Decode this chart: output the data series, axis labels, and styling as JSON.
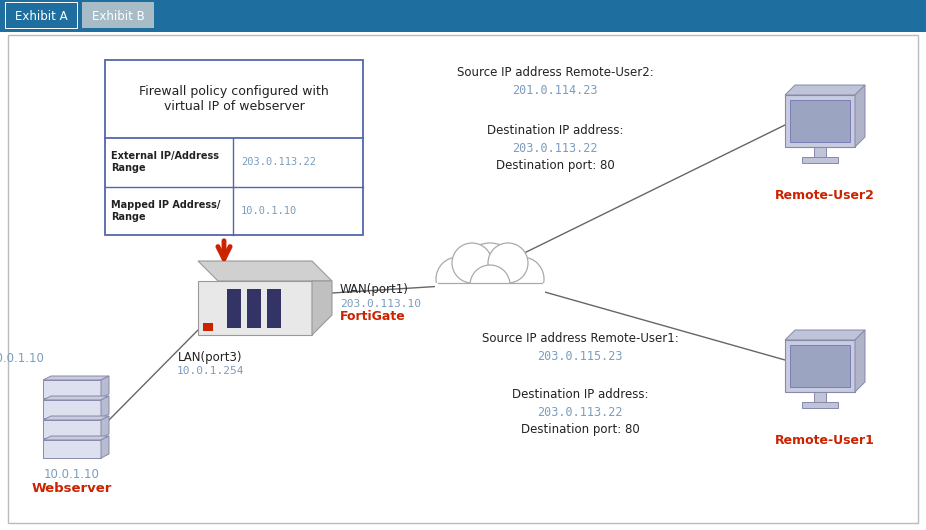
{
  "bg_color": "#ffffff",
  "header_bg": "#1e6fa0",
  "tab_a_bg": "#1e6fa0",
  "tab_a_text_color": "white",
  "tab_b_bg": "#a8bcc8",
  "tab_b_text_color": "white",
  "tab_a_text": "Exhibit A",
  "tab_b_text": "Exhibit B",
  "main_border": "#bbbbbb",
  "table_title": "Firewall policy configured with\nvirtual IP of webserver",
  "table_row1_label": "External IP/Address\nRange",
  "table_row1_val": "203.0.113.22",
  "table_row2_label": "Mapped IP Address/\nRange",
  "table_row2_val": "10.0.1.10",
  "table_border": "#5566aa",
  "wan_label": "WAN(port1)",
  "wan_ip": "203.0.113.10",
  "lan_label": "LAN(port3)",
  "lan_ip": "10.0.1.254",
  "fortigate_label": "FortiGate",
  "webserver_label": "Webserver",
  "webserver_ip": "10.0.1.10",
  "remote_user2_label": "Remote-User2",
  "remote_user1_label": "Remote-User1",
  "src_user2_line1": "Source IP address Remote-User2:",
  "src_user2_line2": "201.0.114.23",
  "dst_user2_line1": "Destination IP address:",
  "dst_user2_line2": "203.0.113.22",
  "dst_user2_line3": "Destination port: 80",
  "src_user1_line1": "Source IP address Remote-User1:",
  "src_user1_line2": "203.0.115.23",
  "dst_user1_line1": "Destination IP address:",
  "dst_user1_line2": "203.0.113.22",
  "dst_user1_line3": "Destination port: 80",
  "ip_color": "#7a9dbf",
  "red_color": "#cc2200",
  "dark_text": "#222222",
  "line_color": "#666666",
  "fg_front": "#e8e8e8",
  "fg_top": "#d0d0d0",
  "fg_side": "#c0c0c0",
  "fg_stripe": "#333366",
  "srv_front": "#dde0ef",
  "srv_top": "#c8ccdc",
  "srv_right": "#b8bcd0",
  "mon_body": "#c8cce0",
  "mon_screen": "#9ba4c0",
  "mon_stand": "#c0c4d8"
}
